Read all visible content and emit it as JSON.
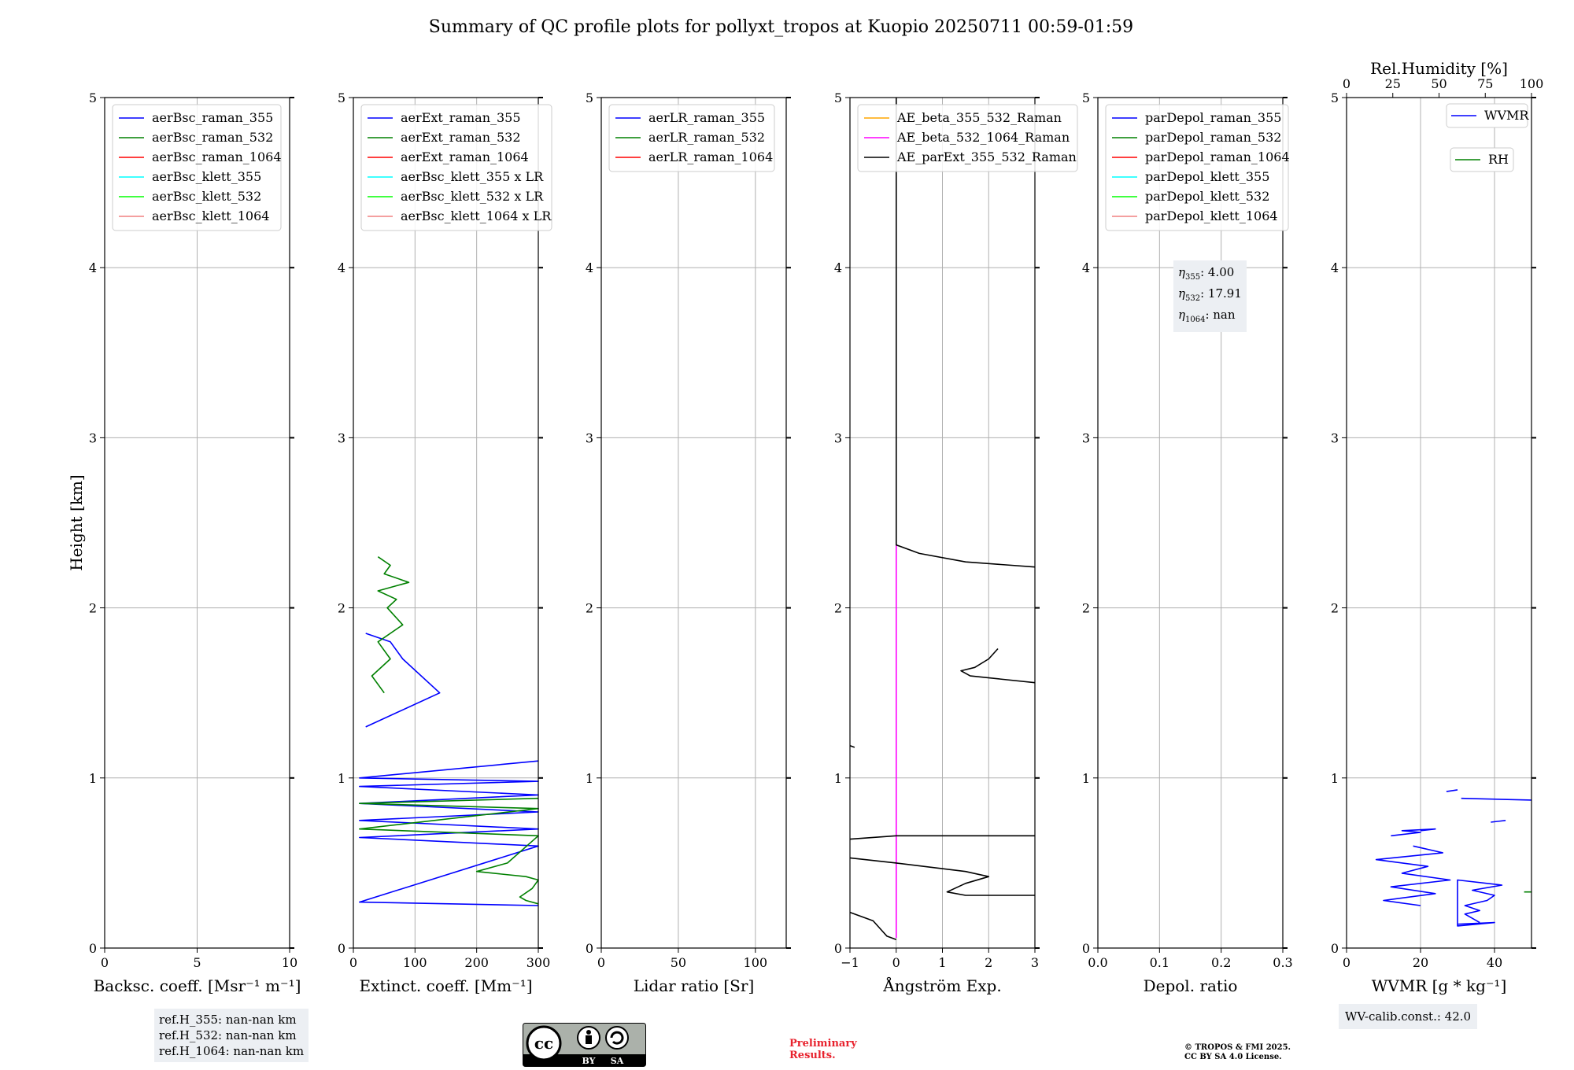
{
  "figure": {
    "title": "Summary of QC profile plots for pollyxt_tropos at Kuopio 20250711 00:59-01:59",
    "ref_heights": [
      "ref.H_355: nan-nan km",
      "ref.H_532: nan-nan km",
      "ref.H_1064: nan-nan km"
    ],
    "wv_calib": "WV-calib.const.: 42.0",
    "license_badge": {
      "icon_name": "cc-by-sa-badge-icon",
      "labels": [
        "BY",
        "SA"
      ]
    },
    "preliminary": "Preliminary\nResults.",
    "copyright": "© TROPOS & FMI 2025.\nCC BY SA 4.0 License.",
    "eta_lines": [
      {
        "prefix": "η",
        "sub": "355",
        "value": ": 4.00"
      },
      {
        "prefix": "η",
        "sub": "532",
        "value": ": 17.91"
      },
      {
        "prefix": "η",
        "sub": "1064",
        "value": ": nan"
      }
    ],
    "colors": {
      "blue": "#0000ff",
      "green": "#008000",
      "red": "#ff0000",
      "cyan": "#00ffff",
      "lime": "#00ff00",
      "salmon": "#f08080",
      "orange": "#ffa500",
      "magenta": "#ff00ff",
      "black": "#000000",
      "grid": "#b0b0b0",
      "infobox": "#eceff3",
      "prelim": "#e8222d"
    }
  },
  "chart_data": [
    {
      "id": "backscatter",
      "type": "line",
      "xlabel": "Backsc. coeff. [Msr⁻¹ m⁻¹]",
      "ylabel": "Height [km]",
      "xlim": [
        0,
        10
      ],
      "ylim": [
        0,
        5
      ],
      "xticks": [
        0,
        5,
        10
      ],
      "yticks": [
        0,
        1,
        2,
        3,
        4,
        5
      ],
      "grid": true,
      "legend_position": "top-left",
      "legend": [
        {
          "label": "aerBsc_raman_355",
          "color": "#0000ff"
        },
        {
          "label": "aerBsc_raman_532",
          "color": "#008000"
        },
        {
          "label": "aerBsc_raman_1064",
          "color": "#ff0000"
        },
        {
          "label": "aerBsc_klett_355",
          "color": "#00ffff"
        },
        {
          "label": "aerBsc_klett_532",
          "color": "#00ff00"
        },
        {
          "label": "aerBsc_klett_1064",
          "color": "#f08080"
        }
      ],
      "series": []
    },
    {
      "id": "extinction",
      "type": "line",
      "xlabel": "Extinct. coeff. [Mm⁻¹]",
      "xlim": [
        0,
        300
      ],
      "ylim": [
        0,
        5
      ],
      "xticks": [
        0,
        100,
        200,
        300
      ],
      "yticks": [
        0,
        1,
        2,
        3,
        4,
        5
      ],
      "grid": true,
      "legend_position": "top-left",
      "legend": [
        {
          "label": "aerExt_raman_355",
          "color": "#0000ff"
        },
        {
          "label": "aerExt_raman_532",
          "color": "#008000"
        },
        {
          "label": "aerExt_raman_1064",
          "color": "#ff0000"
        },
        {
          "label": "aerBsc_klett_355 x LR",
          "color": "#00ffff"
        },
        {
          "label": "aerBsc_klett_532 x LR",
          "color": "#00ff00"
        },
        {
          "label": "aerBsc_klett_1064 x LR",
          "color": "#f08080"
        }
      ],
      "series": [
        {
          "color": "#0000ff",
          "x": [
            20,
            140,
            80,
            60,
            20
          ],
          "y": [
            1.3,
            1.5,
            1.7,
            1.8,
            1.85
          ]
        },
        {
          "color": "#008000",
          "x": [
            50,
            30,
            60,
            40,
            80,
            55,
            70,
            40,
            90,
            50,
            60,
            40
          ],
          "y": [
            1.5,
            1.6,
            1.7,
            1.8,
            1.9,
            2.0,
            2.05,
            2.1,
            2.15,
            2.2,
            2.25,
            2.3
          ]
        },
        {
          "color": "#0000ff",
          "x": [
            300,
            10,
            300,
            10,
            300,
            10,
            300,
            10,
            300,
            10,
            300,
            10,
            300
          ],
          "y": [
            1.1,
            1.0,
            0.98,
            0.95,
            0.9,
            0.85,
            0.8,
            0.75,
            0.7,
            0.65,
            0.6,
            0.27,
            0.25
          ]
        },
        {
          "color": "#008000",
          "x": [
            300,
            10,
            300,
            10,
            300,
            250,
            200,
            280,
            300,
            290,
            270,
            280,
            300
          ],
          "y": [
            0.88,
            0.85,
            0.82,
            0.7,
            0.66,
            0.5,
            0.45,
            0.42,
            0.4,
            0.35,
            0.3,
            0.28,
            0.26
          ]
        }
      ]
    },
    {
      "id": "lidar_ratio",
      "type": "line",
      "xlabel": "Lidar ratio [Sr]",
      "xlim": [
        0,
        120
      ],
      "ylim": [
        0,
        5
      ],
      "xticks": [
        0,
        50,
        100
      ],
      "yticks": [
        0,
        1,
        2,
        3,
        4,
        5
      ],
      "grid": true,
      "legend_position": "top-left",
      "legend": [
        {
          "label": "aerLR_raman_355",
          "color": "#0000ff"
        },
        {
          "label": "aerLR_raman_532",
          "color": "#008000"
        },
        {
          "label": "aerLR_raman_1064",
          "color": "#ff0000"
        }
      ],
      "series": []
    },
    {
      "id": "angstrom",
      "type": "line",
      "xlabel": "Ångström Exp.",
      "xlim": [
        -1,
        3
      ],
      "ylim": [
        0,
        5
      ],
      "xticks": [
        -1,
        0,
        1,
        2,
        3
      ],
      "xticklabels": [
        "−1",
        "0",
        "1",
        "2",
        "3"
      ],
      "yticks": [
        0,
        1,
        2,
        3,
        4,
        5
      ],
      "grid": true,
      "legend_position": "top-left",
      "legend": [
        {
          "label": "AE_beta_355_532_Raman",
          "color": "#ffa500"
        },
        {
          "label": "AE_beta_532_1064_Raman",
          "color": "#ff00ff"
        },
        {
          "label": "AE_parExt_355_532_Raman",
          "color": "#000000"
        }
      ],
      "series": [
        {
          "color": "#ff00ff",
          "x": [
            0,
            0
          ],
          "y": [
            0.06,
            2.37
          ]
        },
        {
          "color": "#000000",
          "x": [
            0,
            0,
            0.5,
            1.5,
            3.0
          ],
          "y": [
            5.0,
            2.37,
            2.32,
            2.27,
            2.24
          ]
        },
        {
          "color": "#000000",
          "x": [
            3.0,
            1.6,
            1.4,
            1.7,
            2.0,
            2.2
          ],
          "y": [
            1.56,
            1.6,
            1.63,
            1.65,
            1.7,
            1.76
          ]
        },
        {
          "color": "#000000",
          "x": [
            -1,
            -0.9
          ],
          "y": [
            1.19,
            1.18
          ]
        },
        {
          "color": "#000000",
          "x": [
            -1,
            0,
            3.0
          ],
          "y": [
            0.64,
            0.66,
            0.66
          ]
        },
        {
          "color": "#000000",
          "x": [
            -1,
            0,
            1.5,
            2.0,
            1.5,
            1.1,
            1.5,
            3.0
          ],
          "y": [
            0.53,
            0.5,
            0.45,
            0.42,
            0.38,
            0.33,
            0.31,
            0.31
          ]
        },
        {
          "color": "#000000",
          "x": [
            -1,
            -0.5,
            -0.3,
            -0.2,
            0
          ],
          "y": [
            0.21,
            0.16,
            0.1,
            0.07,
            0.05
          ]
        }
      ]
    },
    {
      "id": "depol",
      "type": "line",
      "xlabel": "Depol. ratio",
      "xlim": [
        0.0,
        0.3
      ],
      "ylim": [
        0,
        5
      ],
      "xticks": [
        0.0,
        0.1,
        0.2,
        0.3
      ],
      "xticklabels": [
        "0.0",
        "0.1",
        "0.2",
        "0.3"
      ],
      "yticks": [
        0,
        1,
        2,
        3,
        4,
        5
      ],
      "grid": true,
      "legend_position": "top-left",
      "legend": [
        {
          "label": "parDepol_raman_355",
          "color": "#0000ff"
        },
        {
          "label": "parDepol_raman_532",
          "color": "#008000"
        },
        {
          "label": "parDepol_raman_1064",
          "color": "#ff0000"
        },
        {
          "label": "parDepol_klett_355",
          "color": "#00ffff"
        },
        {
          "label": "parDepol_klett_532",
          "color": "#00ff00"
        },
        {
          "label": "parDepol_klett_1064",
          "color": "#f08080"
        }
      ],
      "series": []
    },
    {
      "id": "wvmr",
      "type": "line",
      "xlabel": "WVMR [g * kg⁻¹]",
      "x2label": "Rel.Humidity [%]",
      "xlim": [
        0,
        50
      ],
      "x2lim": [
        0,
        100
      ],
      "ylim": [
        0,
        5
      ],
      "xticks": [
        0,
        20,
        40
      ],
      "x2ticks": [
        0,
        25,
        50,
        75,
        100
      ],
      "yticks": [
        0,
        1,
        2,
        3,
        4,
        5
      ],
      "grid": true,
      "legend_position": "top-right",
      "legend": [
        {
          "label": "WVMR",
          "color": "#0000ff"
        },
        {
          "label": "RH",
          "color": "#008000"
        }
      ],
      "series": [
        {
          "color": "#0000ff",
          "x": [
            36,
            32,
            36,
            32,
            38,
            40,
            34,
            42,
            30,
            30,
            40,
            30
          ],
          "y": [
            0.15,
            0.2,
            0.22,
            0.25,
            0.28,
            0.31,
            0.34,
            0.37,
            0.4,
            0.13,
            0.15,
            0.14
          ]
        },
        {
          "color": "#0000ff",
          "x": [
            20,
            10,
            24,
            12,
            28,
            15,
            22,
            8,
            26,
            18
          ],
          "y": [
            0.25,
            0.28,
            0.32,
            0.36,
            0.4,
            0.44,
            0.48,
            0.52,
            0.56,
            0.6
          ]
        },
        {
          "color": "#0000ff",
          "x": [
            12,
            20,
            15,
            24,
            20
          ],
          "y": [
            0.66,
            0.68,
            0.69,
            0.7,
            0.69
          ]
        },
        {
          "color": "#0000ff",
          "x": [
            39,
            43
          ],
          "y": [
            0.74,
            0.75
          ]
        },
        {
          "color": "#0000ff",
          "x": [
            31,
            50
          ],
          "y": [
            0.88,
            0.87
          ]
        },
        {
          "color": "#0000ff",
          "x": [
            27,
            30
          ],
          "y": [
            0.92,
            0.93
          ]
        },
        {
          "color": "#008000",
          "x": [
            48,
            50
          ],
          "y": [
            0.33,
            0.33
          ]
        }
      ]
    }
  ]
}
